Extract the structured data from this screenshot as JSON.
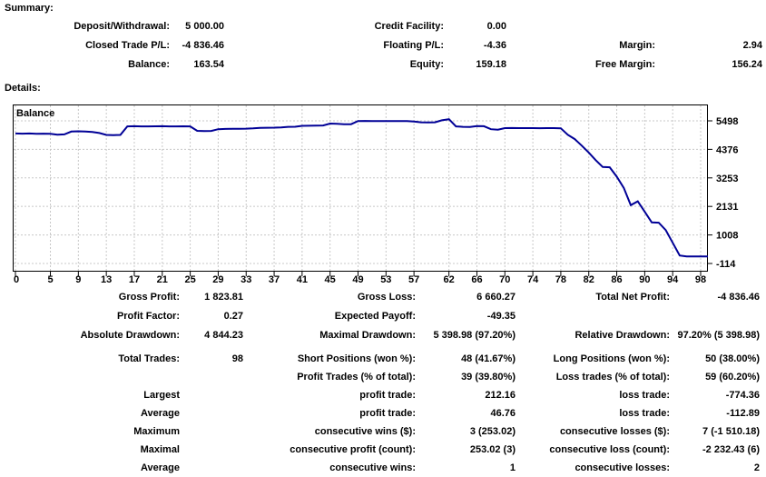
{
  "summary": {
    "heading": "Summary:",
    "rows": [
      [
        "Deposit/Withdrawal:",
        "5 000.00",
        "Credit Facility:",
        "0.00",
        "",
        ""
      ],
      [
        "Closed Trade P/L:",
        "-4 836.46",
        "Floating P/L:",
        "-4.36",
        "Margin:",
        "2.94"
      ],
      [
        "Balance:",
        "163.54",
        "Equity:",
        "159.18",
        "Free Margin:",
        "156.24"
      ]
    ]
  },
  "details": {
    "heading": "Details:"
  },
  "stats": {
    "rows": [
      [
        "Gross Profit:",
        "1 823.81",
        "Gross Loss:",
        "6 660.27",
        "Total Net Profit:",
        "-4 836.46"
      ],
      [
        "Profit Factor:",
        "0.27",
        "Expected Payoff:",
        "-49.35",
        "",
        ""
      ],
      [
        "Absolute Drawdown:",
        "4 844.23",
        "Maximal Drawdown:",
        "5 398.98 (97.20%)",
        "Relative Drawdown:",
        "97.20% (5 398.98)"
      ]
    ]
  },
  "trades": {
    "rows": [
      [
        "Total Trades:",
        "98",
        "Short Positions (won %):",
        "48 (41.67%)",
        "Long Positions (won %):",
        "50 (38.00%)"
      ],
      [
        "",
        "",
        "Profit Trades (% of total):",
        "39 (39.80%)",
        "Loss trades (% of total):",
        "59 (60.20%)"
      ],
      [
        "Largest",
        "",
        "profit trade:",
        "212.16",
        "loss trade:",
        "-774.36"
      ],
      [
        "Average",
        "",
        "profit trade:",
        "46.76",
        "loss trade:",
        "-112.89"
      ],
      [
        "Maximum",
        "",
        "consecutive wins ($):",
        "3 (253.02)",
        "consecutive losses ($):",
        "7 (-1 510.18)"
      ],
      [
        "Maximal",
        "",
        "consecutive profit (count):",
        "253.02 (3)",
        "consecutive loss (count):",
        "-2 232.43 (6)"
      ],
      [
        "Average",
        "",
        "consecutive wins:",
        "1",
        "consecutive losses:",
        "2"
      ]
    ]
  },
  "chart_data": {
    "type": "line",
    "title": "Balance",
    "series_label": "Balance",
    "x_ticks": [
      0,
      5,
      9,
      13,
      17,
      21,
      25,
      29,
      33,
      37,
      41,
      45,
      49,
      53,
      57,
      62,
      66,
      70,
      74,
      78,
      82,
      86,
      90,
      94,
      98
    ],
    "y_ticks": [
      5498,
      4376,
      3253,
      2131,
      1008,
      -114
    ],
    "x_range": [
      0,
      99.2
    ],
    "y_range": [
      -436,
      6141
    ],
    "grid": true,
    "line_color": "#000096",
    "grid_color": "#c8c8c8",
    "initial_deposit": 5000,
    "final_balance": 163.54,
    "values": [
      5000,
      4995,
      5000,
      4990,
      4992,
      4985,
      4955,
      4965,
      5075,
      5085,
      5080,
      5060,
      5020,
      4945,
      4935,
      4945,
      5280,
      5285,
      5280,
      5278,
      5282,
      5285,
      5280,
      5278,
      5282,
      5280,
      5105,
      5095,
      5100,
      5170,
      5180,
      5182,
      5185,
      5190,
      5200,
      5220,
      5225,
      5230,
      5240,
      5260,
      5265,
      5300,
      5305,
      5310,
      5315,
      5390,
      5385,
      5360,
      5365,
      5490,
      5495,
      5490,
      5492,
      5490,
      5488,
      5490,
      5488,
      5470,
      5440,
      5435,
      5440,
      5520,
      5562,
      5280,
      5260,
      5255,
      5290,
      5285,
      5170,
      5150,
      5210,
      5215,
      5210,
      5212,
      5210,
      5208,
      5212,
      5210,
      5205,
      4950,
      4780,
      4520,
      4250,
      3950,
      3680,
      3670,
      3300,
      2860,
      2180,
      2330,
      1920,
      1500,
      1490,
      1200,
      700,
      200,
      163.54,
      163.54,
      163.54
    ]
  }
}
